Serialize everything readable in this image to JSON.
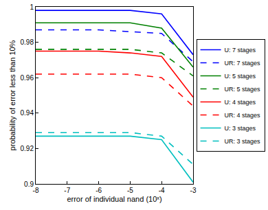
{
  "chart_data": {
    "type": "line",
    "x_label": "error of individual nand (10ˣ)",
    "y_label": "probability of error less than 10%",
    "x": [
      -8,
      -7,
      -6,
      -5,
      -4,
      -3
    ],
    "xlim": [
      -8,
      -3
    ],
    "xticks": [
      -8,
      -7,
      -6,
      -5,
      -4,
      -3
    ],
    "ylim": [
      0.9,
      1
    ],
    "yticks": [
      0.9,
      0.92,
      0.94,
      0.96,
      0.98,
      1
    ],
    "grid": false,
    "legend": "right",
    "series": [
      {
        "name": "U: 7 stages",
        "color": "#0000ff",
        "line_style": "solid",
        "values": [
          0.998,
          0.998,
          0.998,
          0.998,
          0.996,
          0.973
        ]
      },
      {
        "name": "UR: 7 stages",
        "color": "#0000ff",
        "line_style": "dashed",
        "values": [
          0.987,
          0.987,
          0.987,
          0.986,
          0.985,
          0.969
        ]
      },
      {
        "name": "U: 5 stages",
        "color": "#008000",
        "line_style": "solid",
        "values": [
          0.991,
          0.991,
          0.991,
          0.991,
          0.988,
          0.966
        ]
      },
      {
        "name": "UR: 5 stages",
        "color": "#008000",
        "line_style": "dashed",
        "values": [
          0.976,
          0.976,
          0.976,
          0.976,
          0.974,
          0.961
        ]
      },
      {
        "name": "U: 4 stages",
        "color": "#ff0000",
        "line_style": "solid",
        "values": [
          0.975,
          0.975,
          0.975,
          0.974,
          0.972,
          0.949
        ]
      },
      {
        "name": "UR: 4 stages",
        "color": "#ff0000",
        "line_style": "dashed",
        "values": [
          0.962,
          0.962,
          0.962,
          0.962,
          0.96,
          0.944
        ]
      },
      {
        "name": "U: 3 stages",
        "color": "#00bfbf",
        "line_style": "solid",
        "values": [
          0.927,
          0.927,
          0.927,
          0.927,
          0.925,
          0.901
        ]
      },
      {
        "name": "UR: 3 stages",
        "color": "#00bfbf",
        "line_style": "dashed",
        "values": [
          0.929,
          0.929,
          0.929,
          0.929,
          0.927,
          0.911
        ]
      }
    ]
  }
}
